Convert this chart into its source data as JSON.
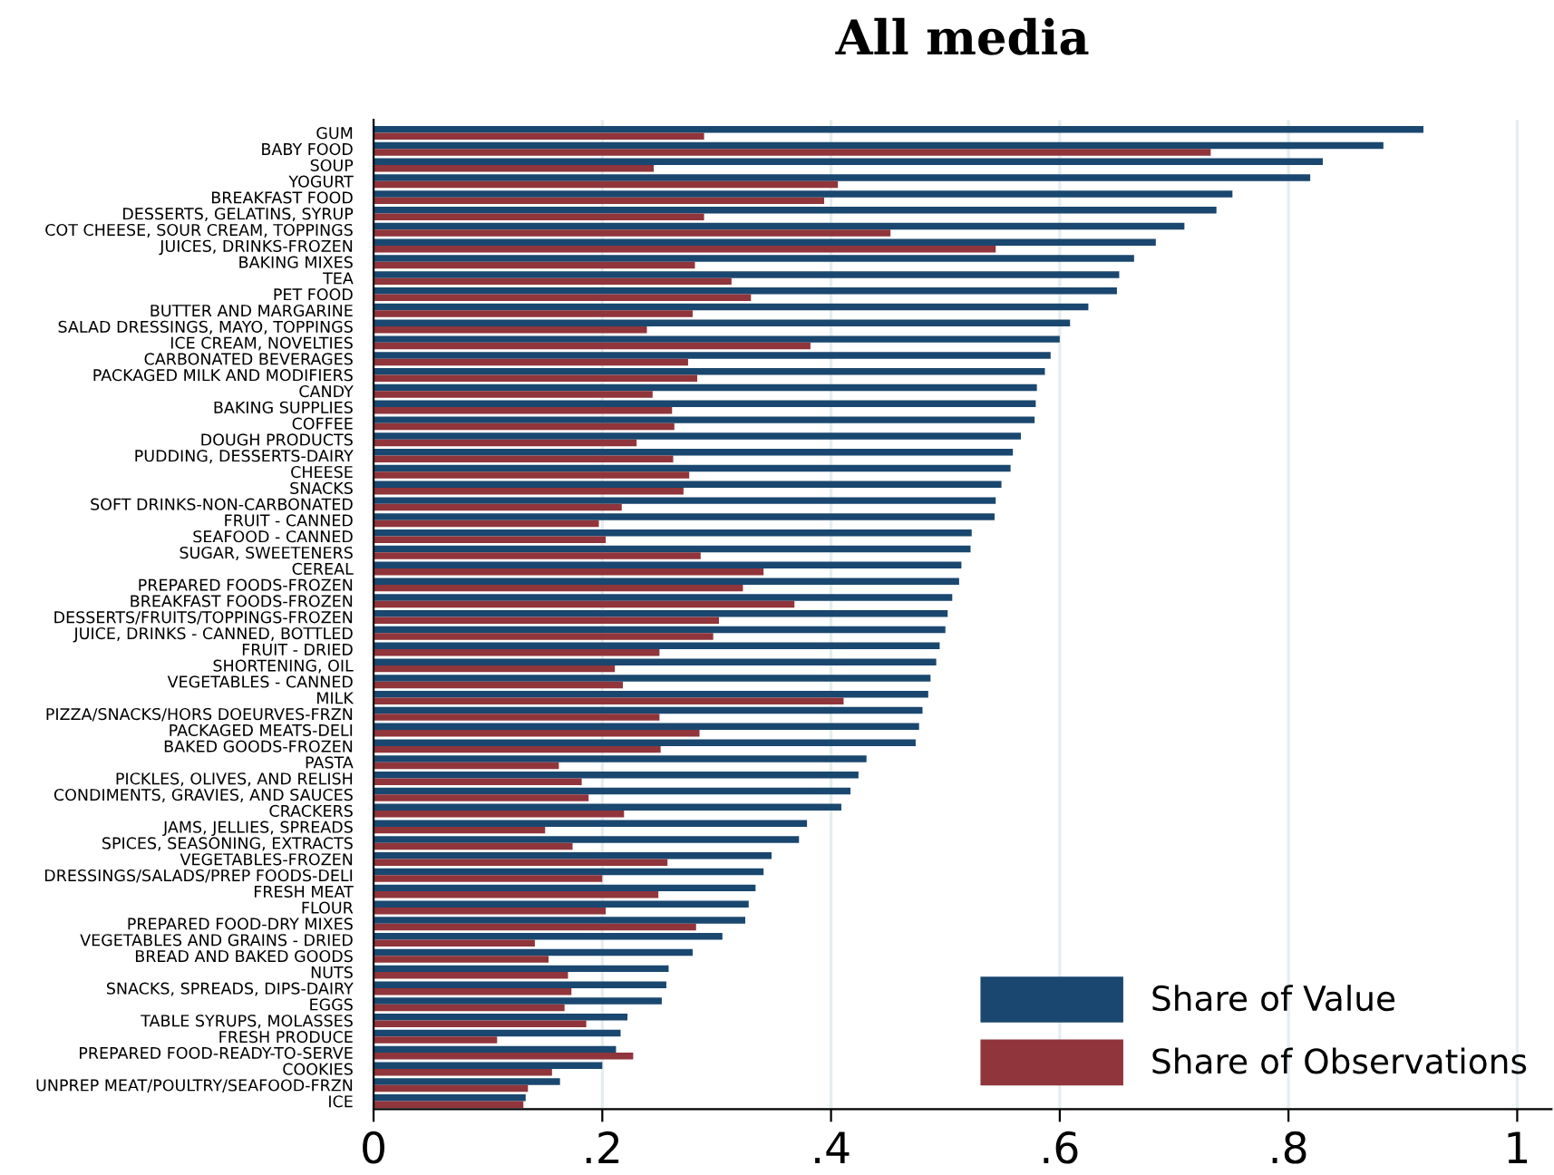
{
  "chart_data": {
    "type": "bar",
    "orientation": "horizontal",
    "title": "All media",
    "categories": [
      "GUM",
      "BABY FOOD",
      "SOUP",
      "YOGURT",
      "BREAKFAST FOOD",
      "DESSERTS, GELATINS, SYRUP",
      "COT CHEESE, SOUR CREAM, TOPPINGS",
      "JUICES, DRINKS-FROZEN",
      "BAKING MIXES",
      "TEA",
      "PET FOOD",
      "BUTTER AND MARGARINE",
      "SALAD DRESSINGS, MAYO, TOPPINGS",
      "ICE CREAM, NOVELTIES",
      "CARBONATED BEVERAGES",
      "PACKAGED MILK AND MODIFIERS",
      "CANDY",
      "BAKING SUPPLIES",
      "COFFEE",
      "DOUGH PRODUCTS",
      "PUDDING, DESSERTS-DAIRY",
      "CHEESE",
      "SNACKS",
      "SOFT DRINKS-NON-CARBONATED",
      "FRUIT - CANNED",
      "SEAFOOD - CANNED",
      "SUGAR, SWEETENERS",
      "CEREAL",
      "PREPARED FOODS-FROZEN",
      "BREAKFAST FOODS-FROZEN",
      "DESSERTS/FRUITS/TOPPINGS-FROZEN",
      "JUICE, DRINKS - CANNED, BOTTLED",
      "FRUIT - DRIED",
      "SHORTENING, OIL",
      "VEGETABLES - CANNED",
      "MILK",
      "PIZZA/SNACKS/HORS DOEURVES-FRZN",
      "PACKAGED MEATS-DELI",
      "BAKED GOODS-FROZEN",
      "PASTA",
      "PICKLES, OLIVES, AND RELISH",
      "CONDIMENTS, GRAVIES, AND SAUCES",
      "CRACKERS",
      "JAMS, JELLIES, SPREADS",
      "SPICES, SEASONING, EXTRACTS",
      "VEGETABLES-FROZEN",
      "DRESSINGS/SALADS/PREP FOODS-DELI",
      "FRESH MEAT",
      "FLOUR",
      "PREPARED FOOD-DRY MIXES",
      "VEGETABLES AND GRAINS - DRIED",
      "BREAD AND BAKED GOODS",
      "NUTS",
      "SNACKS, SPREADS, DIPS-DAIRY",
      "EGGS",
      "TABLE SYRUPS, MOLASSES",
      "FRESH PRODUCE",
      "PREPARED FOOD-READY-TO-SERVE",
      "COOKIES",
      "UNPREP MEAT/POULTRY/SEAFOOD-FRZN",
      "ICE"
    ],
    "series": [
      {
        "name": "Share of Value",
        "color": "#1a476f",
        "values": [
          0.918,
          0.883,
          0.83,
          0.819,
          0.751,
          0.737,
          0.709,
          0.684,
          0.665,
          0.652,
          0.65,
          0.625,
          0.609,
          0.6,
          0.592,
          0.587,
          0.58,
          0.579,
          0.578,
          0.566,
          0.559,
          0.557,
          0.549,
          0.544,
          0.543,
          0.523,
          0.522,
          0.514,
          0.512,
          0.506,
          0.502,
          0.5,
          0.495,
          0.492,
          0.487,
          0.485,
          0.48,
          0.477,
          0.474,
          0.431,
          0.424,
          0.417,
          0.409,
          0.379,
          0.372,
          0.348,
          0.341,
          0.334,
          0.328,
          0.325,
          0.305,
          0.279,
          0.258,
          0.256,
          0.252,
          0.222,
          0.216,
          0.212,
          0.2,
          0.163,
          0.133
        ]
      },
      {
        "name": "Share of Observations",
        "color": "#90353b",
        "values": [
          0.289,
          0.732,
          0.245,
          0.406,
          0.394,
          0.289,
          0.452,
          0.544,
          0.281,
          0.313,
          0.33,
          0.279,
          0.239,
          0.382,
          0.275,
          0.283,
          0.244,
          0.261,
          0.263,
          0.23,
          0.262,
          0.276,
          0.271,
          0.217,
          0.197,
          0.203,
          0.286,
          0.341,
          0.323,
          0.368,
          0.302,
          0.297,
          0.25,
          0.211,
          0.218,
          0.411,
          0.25,
          0.285,
          0.251,
          0.162,
          0.182,
          0.188,
          0.219,
          0.15,
          0.174,
          0.257,
          0.2,
          0.249,
          0.203,
          0.282,
          0.141,
          0.153,
          0.17,
          0.173,
          0.167,
          0.186,
          0.108,
          0.227,
          0.156,
          0.135,
          0.131
        ]
      }
    ],
    "xlim": [
      0,
      1.03
    ],
    "xticks": [
      0,
      {
        "value": 0.2,
        "label": ".2"
      },
      {
        "value": 0.4,
        "label": ".4"
      },
      {
        "value": 0.6,
        "label": ".6"
      },
      {
        "value": 0.8,
        "label": ".8"
      },
      1
    ],
    "grid": "x",
    "legend": "bottom right"
  }
}
